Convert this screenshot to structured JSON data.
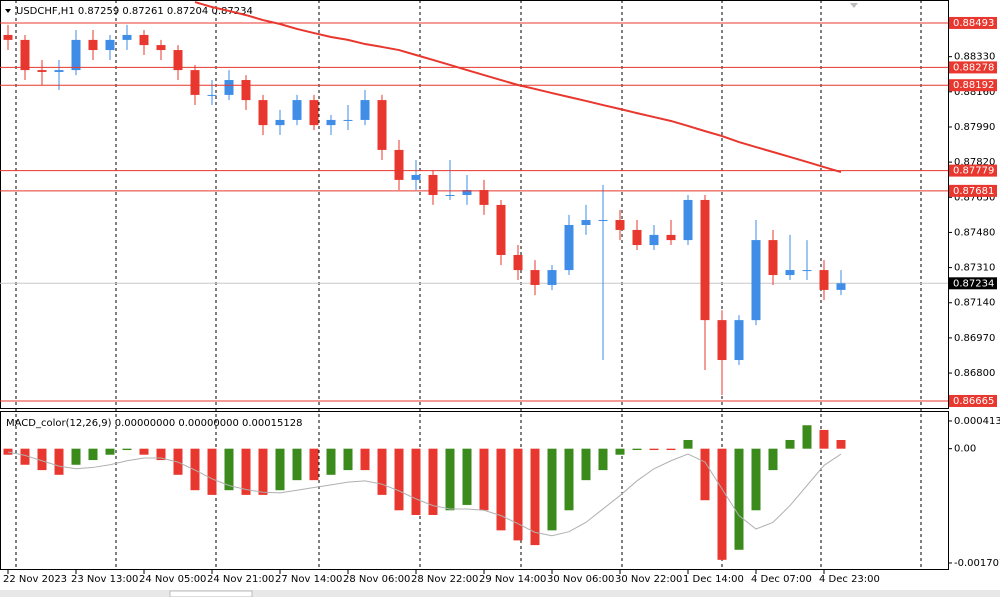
{
  "chart_data": [
    {
      "type": "candlestick",
      "title": "USDCHF,H1  0.87259 0.87261 0.87204 0.87234",
      "categories": [
        "22 Nov 2023",
        null,
        null,
        null,
        "23 Nov 13:00",
        null,
        null,
        null,
        "24 Nov 05:00",
        null,
        null,
        null,
        "24 Nov 21:00",
        null,
        null,
        null,
        "27 Nov 14:00",
        null,
        null,
        null,
        "28 Nov 06:00",
        null,
        null,
        null,
        "28 Nov 22:00",
        null,
        null,
        null,
        "29 Nov 14:00",
        null,
        null,
        null,
        "30 Nov 06:00",
        null,
        null,
        null,
        "30 Nov 22:00",
        null,
        null,
        null,
        "1 Dec 14:00",
        null,
        null,
        null,
        "4 Dec 07:00",
        null,
        null,
        null,
        "4 Dec 23:00",
        null
      ],
      "open": [
        0.88435,
        0.88411,
        0.88265,
        0.88256,
        0.88265,
        0.88411,
        0.88362,
        0.88411,
        0.88435,
        0.88386,
        0.88362,
        0.88265,
        0.88145,
        0.88145,
        0.88217,
        0.8812,
        0.87999,
        0.88024,
        0.8812,
        0.87999,
        0.88024,
        0.88024,
        0.8812,
        0.87879,
        0.87734,
        0.87758,
        0.87661,
        0.87661,
        0.87685,
        0.87613,
        0.87371,
        0.87298,
        0.87226,
        0.87298,
        0.87516,
        0.8754,
        0.8754,
        0.87492,
        0.87419,
        0.87468,
        0.87443,
        0.87637,
        0.87056,
        0.86863,
        0.87056,
        0.87443,
        0.87274,
        0.87298,
        0.87298,
        0.87202
      ],
      "high": [
        0.88484,
        0.88435,
        0.88314,
        0.88314,
        0.88459,
        0.88459,
        0.88435,
        0.88484,
        0.88459,
        0.88411,
        0.88386,
        0.8829,
        0.88217,
        0.88265,
        0.88241,
        0.88145,
        0.88072,
        0.88145,
        0.88145,
        0.88048,
        0.88096,
        0.88169,
        0.88145,
        0.87927,
        0.8783,
        0.87782,
        0.8783,
        0.87758,
        0.87734,
        0.87637,
        0.87419,
        0.87346,
        0.87322,
        0.87565,
        0.87613,
        0.8771,
        0.87589,
        0.8754,
        0.87516,
        0.8754,
        0.87661,
        0.87661,
        0.87104,
        0.8708,
        0.8754,
        0.87492,
        0.87468,
        0.87443,
        0.87346,
        0.87298
      ],
      "low": [
        0.88362,
        0.88217,
        0.88193,
        0.88169,
        0.88241,
        0.88314,
        0.88314,
        0.88362,
        0.88338,
        0.88314,
        0.88217,
        0.88096,
        0.88096,
        0.8812,
        0.88072,
        0.87951,
        0.87951,
        0.87999,
        0.87975,
        0.87951,
        0.87975,
        0.87999,
        0.8783,
        0.87685,
        0.87685,
        0.87613,
        0.87637,
        0.87613,
        0.87565,
        0.87322,
        0.8725,
        0.87177,
        0.87201,
        0.87274,
        0.87468,
        0.86863,
        0.87443,
        0.87395,
        0.87395,
        0.87419,
        0.87419,
        0.86815,
        0.86694,
        0.86839,
        0.87032,
        0.87226,
        0.8725,
        0.8725,
        0.87153,
        0.87177
      ],
      "close": [
        0.88411,
        0.88265,
        0.88256,
        0.88265,
        0.88411,
        0.88362,
        0.88411,
        0.88435,
        0.88386,
        0.88362,
        0.88265,
        0.88145,
        0.88145,
        0.88217,
        0.8812,
        0.87999,
        0.88024,
        0.8812,
        0.87999,
        0.88024,
        0.88024,
        0.8812,
        0.87879,
        0.87734,
        0.87758,
        0.87661,
        0.87661,
        0.87685,
        0.87613,
        0.87371,
        0.87298,
        0.87226,
        0.87298,
        0.87516,
        0.8754,
        0.8754,
        0.87492,
        0.87419,
        0.87468,
        0.87443,
        0.87637,
        0.87056,
        0.86863,
        0.87056,
        0.87443,
        0.87274,
        0.87298,
        0.87298,
        0.87202,
        0.87234
      ],
      "up_color": "#3f8de6",
      "down_color": "#e8372e",
      "moving_average": {
        "color": "#e8372e",
        "values": [
          null,
          null,
          null,
          null,
          null,
          null,
          null,
          null,
          null,
          null,
          null,
          0.88594,
          0.8857,
          0.88551,
          0.88531,
          0.88507,
          0.88488,
          0.88464,
          0.88444,
          0.88425,
          0.88411,
          0.88391,
          0.88377,
          0.88362,
          0.88338,
          0.88314,
          0.8829,
          0.88265,
          0.88241,
          0.88217,
          0.88193,
          0.88174,
          0.88154,
          0.88135,
          0.88116,
          0.88096,
          0.88077,
          0.88057,
          0.88038,
          0.88019,
          0.87995,
          0.8797,
          0.87946,
          0.87917,
          0.87893,
          0.87869,
          0.87845,
          0.87821,
          0.87796,
          0.87772
        ]
      },
      "ylim": [
        0.86631,
        0.88604
      ],
      "yticks": [
        {
          "value": 0.8833,
          "label": "0.88330"
        },
        {
          "value": 0.8816,
          "label": "0.88160"
        },
        {
          "value": 0.8799,
          "label": "0.87990"
        },
        {
          "value": 0.8782,
          "label": "0.87820"
        },
        {
          "value": 0.8765,
          "label": "0.87650"
        },
        {
          "value": 0.8748,
          "label": "0.87480"
        },
        {
          "value": 0.8731,
          "label": "0.87310"
        },
        {
          "value": 0.8714,
          "label": "0.87140"
        },
        {
          "value": 0.8697,
          "label": "0.86970"
        },
        {
          "value": 0.868,
          "label": "0.86800"
        }
      ],
      "levels": [
        {
          "value": 0.88493,
          "label": "0.88493"
        },
        {
          "value": 0.88278,
          "label": "0.88278"
        },
        {
          "value": 0.88192,
          "label": "0.88192"
        },
        {
          "value": 0.87779,
          "label": "0.87779"
        },
        {
          "value": 0.87681,
          "label": "0.87681"
        },
        {
          "value": 0.86665,
          "label": "0.86665"
        }
      ],
      "level_color": "#e8372e",
      "current_price": {
        "value": 0.87234,
        "label": "0.87234"
      }
    },
    {
      "type": "histogram",
      "title": "MACD_color(12,26,9) 0.00000000 0.00000000 0.00015128",
      "values": [
        -9e-05,
        -0.00024,
        -0.00032,
        -0.00039,
        -0.00024,
        -0.00017,
        -9e-05,
        -2e-05,
        -9e-05,
        -0.00017,
        -0.00039,
        -0.00062,
        -0.00069,
        -0.00062,
        -0.00069,
        -0.00069,
        -0.00062,
        -0.00047,
        -0.00047,
        -0.00039,
        -0.00032,
        -0.00032,
        -0.00069,
        -0.00092,
        -0.00099,
        -0.00099,
        -0.00092,
        -0.00084,
        -0.00092,
        -0.00122,
        -0.00137,
        -0.00144,
        -0.00122,
        -0.00092,
        -0.00047,
        -0.00032,
        -9e-05,
        -2e-05,
        -2e-05,
        -2e-05,
        0.00013,
        -0.00077,
        -0.00166,
        -0.00151,
        -0.00092,
        -0.00032,
        0.00013,
        0.00035,
        0.00028,
        0.00013
      ],
      "signal": {
        "color": "#b0b0b0",
        "values": [
          -5e-05,
          -0.0001,
          -0.00018,
          -0.00026,
          -0.0003,
          -0.00028,
          -0.00024,
          -0.00018,
          -0.00014,
          -0.00014,
          -0.0002,
          -0.00032,
          -0.00045,
          -0.00055,
          -0.00061,
          -0.00065,
          -0.00066,
          -0.00062,
          -0.00058,
          -0.00054,
          -0.0005,
          -0.00048,
          -0.00053,
          -0.00063,
          -0.00075,
          -0.00085,
          -0.0009,
          -0.0009,
          -0.00092,
          -0.001,
          -0.00112,
          -0.00125,
          -0.0013,
          -0.00124,
          -0.0011,
          -0.0009,
          -0.0007,
          -0.00048,
          -0.0003,
          -0.00018,
          -8e-05,
          -0.0002,
          -0.0006,
          -0.001,
          -0.0012,
          -0.0011,
          -0.00085,
          -0.00055,
          -0.00025,
          -8e-05
        ]
      },
      "up_color": "#3a8a1c",
      "down_color": "#e8372e",
      "ylim": [
        -0.001812,
        0.000548
      ],
      "yticks": [
        0.0004139,
        {
          "value": 0,
          "label": "0.00"
        },
        -0.0017071
      ]
    }
  ]
}
